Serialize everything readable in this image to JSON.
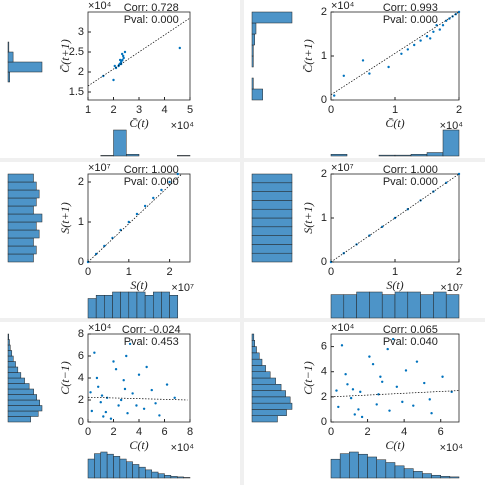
{
  "chart_data": [
    {
      "type": "scatter",
      "color": "#0072bd",
      "hist_color": "#4d94c8",
      "x_label": "C̄(t)",
      "y_label": "C̄(t+1)",
      "x_exponent": "×10⁴",
      "y_exponent": "×10⁴",
      "corr": "Corr: 0.728",
      "pval": "Pval: 0.000",
      "xlim": [
        1,
        5
      ],
      "ylim": [
        1.3,
        3.5
      ],
      "xticks": [
        1,
        2,
        3,
        4,
        5
      ],
      "yticks": [
        1.5,
        2,
        2.5,
        3
      ],
      "x": [
        2.2,
        2.25,
        2.3,
        2.35,
        2.4,
        2.28,
        2.32,
        2.22,
        2.38,
        2.3,
        2.26,
        2.34,
        2.1,
        2.0,
        1.6,
        4.6,
        2.05,
        2.45
      ],
      "y": [
        2.15,
        2.2,
        2.25,
        2.3,
        2.35,
        2.22,
        2.28,
        2.18,
        2.4,
        2.2,
        2.3,
        2.45,
        2.1,
        1.8,
        1.9,
        2.6,
        2.15,
        2.5
      ],
      "fit": {
        "x": [
          1,
          5
        ],
        "y": [
          1.65,
          3.35
        ]
      },
      "y_hist": {
        "bins": [
          1.5,
          1.75,
          2,
          2.25,
          2.5,
          2.75,
          3
        ],
        "counts": [
          0,
          2,
          40,
          6,
          1,
          0
        ]
      },
      "x_hist": {
        "bins": [
          1,
          1.5,
          2,
          2.5,
          3,
          3.5,
          4,
          4.5,
          5
        ],
        "counts": [
          0,
          1,
          45,
          3,
          0,
          0,
          0,
          1
        ]
      }
    },
    {
      "type": "scatter",
      "color": "#0072bd",
      "hist_color": "#4d94c8",
      "x_label": "C̄(t)",
      "y_label": "C̄(t+1)",
      "x_exponent": "×10⁴",
      "y_exponent": "×10⁴",
      "corr": "Corr: 0.993",
      "pval": "Pval: 0.000",
      "xlim": [
        0,
        2
      ],
      "ylim": [
        0,
        2
      ],
      "xticks": [
        0,
        1,
        2
      ],
      "yticks": [
        0,
        1,
        2
      ],
      "x": [
        0.05,
        0.2,
        0.5,
        0.9,
        1.1,
        1.2,
        1.3,
        1.4,
        1.5,
        1.6,
        1.7,
        1.75,
        1.8,
        1.85,
        1.9,
        1.95,
        2,
        1.55,
        1.65,
        0.6
      ],
      "y": [
        0.1,
        0.55,
        0.9,
        0.75,
        1.05,
        1.15,
        1.25,
        1.35,
        1.45,
        1.55,
        1.6,
        1.7,
        1.8,
        1.85,
        1.9,
        1.95,
        2,
        1.4,
        1.7,
        0.6
      ],
      "fit": {
        "x": [
          0,
          2
        ],
        "y": [
          0.12,
          2
        ]
      },
      "y_hist": {
        "bins": [
          0,
          0.25,
          0.5,
          0.75,
          1,
          1.25,
          1.5,
          1.75,
          2
        ],
        "counts": [
          8,
          1,
          0,
          1,
          1,
          2,
          3,
          30
        ]
      },
      "x_hist": {
        "bins": [
          0,
          0.25,
          0.5,
          0.75,
          1,
          1.25,
          1.5,
          1.75,
          2
        ],
        "counts": [
          2,
          0,
          0,
          1,
          1,
          2,
          4,
          30
        ]
      }
    },
    {
      "type": "scatter",
      "color": "#0072bd",
      "hist_color": "#4d94c8",
      "x_label": "S(t)",
      "y_label": "S(t+1)",
      "x_exponent": "×10⁷",
      "y_exponent": "×10⁷",
      "corr": "Corr: 1.000",
      "pval": "Pval: 0.000",
      "xlim": [
        0,
        2.5
      ],
      "ylim": [
        0,
        2.2
      ],
      "xticks": [
        0,
        1,
        2
      ],
      "yticks": [
        0,
        1,
        2
      ],
      "x": [
        0,
        0.2,
        0.4,
        0.6,
        0.8,
        1,
        1.2,
        1.4,
        1.6,
        1.8,
        2,
        2.2
      ],
      "y": [
        0,
        0.2,
        0.4,
        0.6,
        0.8,
        1,
        1.2,
        1.4,
        1.6,
        1.8,
        2,
        2.2
      ],
      "fit": {
        "x": [
          0,
          2.3
        ],
        "y": [
          0,
          2.2
        ]
      },
      "y_hist": {
        "bins": [
          0,
          0.2,
          0.4,
          0.6,
          0.8,
          1,
          1.2,
          1.4,
          1.6,
          1.8,
          2,
          2.2
        ],
        "counts": [
          9,
          10,
          9,
          11,
          10,
          12,
          9,
          10,
          11,
          10,
          9
        ]
      },
      "x_hist": {
        "bins": [
          0,
          0.2,
          0.4,
          0.6,
          0.8,
          1,
          1.2,
          1.4,
          1.6,
          1.8,
          2,
          2.2
        ],
        "counts": [
          6,
          7,
          7,
          8,
          8,
          8,
          8,
          7,
          8,
          8,
          7
        ]
      }
    },
    {
      "type": "scatter",
      "color": "#0072bd",
      "hist_color": "#4d94c8",
      "x_label": "S(t)",
      "y_label": "S(t+1)",
      "x_exponent": "×10⁷",
      "y_exponent": "×10⁷",
      "corr": "Corr: 1.000",
      "pval": "Pval: 0.000",
      "xlim": [
        0,
        2
      ],
      "ylim": [
        0,
        2
      ],
      "xticks": [
        0,
        1,
        2
      ],
      "yticks": [
        0,
        1,
        2
      ],
      "x": [
        0,
        0.2,
        0.4,
        0.6,
        0.8,
        1,
        1.2,
        1.4,
        1.6,
        1.8,
        2
      ],
      "y": [
        0,
        0.2,
        0.4,
        0.6,
        0.8,
        1,
        1.2,
        1.4,
        1.6,
        1.8,
        2
      ],
      "fit": {
        "x": [
          0,
          2
        ],
        "y": [
          0,
          2
        ]
      },
      "y_hist": {
        "bins": [
          0,
          0.2,
          0.4,
          0.6,
          0.8,
          1,
          1.2,
          1.4,
          1.6,
          1.8,
          2
        ],
        "counts": [
          10,
          10,
          10,
          10,
          10,
          10,
          10,
          10,
          10,
          10
        ]
      },
      "x_hist": {
        "bins": [
          0,
          0.2,
          0.4,
          0.6,
          0.8,
          1,
          1.2,
          1.4,
          1.6,
          1.8,
          2
        ],
        "counts": [
          9,
          9,
          10,
          10,
          9,
          10,
          10,
          9,
          10,
          9
        ]
      }
    },
    {
      "type": "scatter",
      "color": "#0072bd",
      "hist_color": "#4d94c8",
      "x_label": "C(t)",
      "y_label": "C(t−1)",
      "x_exponent": "×10⁴",
      "y_exponent": "×10⁴",
      "corr": "Corr: -0.024",
      "pval": "Pval: 0.453",
      "xlim": [
        0,
        8
      ],
      "ylim": [
        0,
        8
      ],
      "xticks": [
        0,
        2,
        4,
        6,
        8
      ],
      "yticks": [
        0,
        2,
        4,
        6,
        8
      ],
      "x": [
        0.3,
        0.8,
        1.2,
        1.5,
        2.0,
        2.4,
        2.8,
        3.1,
        3.5,
        4.0,
        4.4,
        5.0,
        5.6,
        6.2,
        0.5,
        1.0,
        1.8,
        2.2,
        2.6,
        3.3,
        3.8,
        4.6,
        0.2,
        1.4,
        2.9,
        0.7,
        3.0,
        5.3,
        1.1,
        6.8
      ],
      "y": [
        1.0,
        3.2,
        0.5,
        2.2,
        5.5,
        1.5,
        3.8,
        0.8,
        2.6,
        4.3,
        1.2,
        2.9,
        0.6,
        3.4,
        6.3,
        1.8,
        0.3,
        4.8,
        2.0,
        7.1,
        1.5,
        5.0,
        2.7,
        0.9,
        3.0,
        4.0,
        6.0,
        1.7,
        2.4,
        2.2
      ],
      "fit": {
        "x": [
          0,
          7.8
        ],
        "y": [
          2.25,
          2.0
        ]
      },
      "y_hist": {
        "bins": [
          0,
          0.5,
          1,
          1.5,
          2,
          2.5,
          3,
          3.5,
          4,
          4.5,
          5,
          5.5,
          6,
          6.5,
          7,
          7.5,
          8
        ],
        "counts": [
          30,
          40,
          45,
          42,
          38,
          34,
          28,
          22,
          17,
          13,
          10,
          7,
          5,
          3,
          2,
          1
        ]
      },
      "x_hist": {
        "bins": [
          0,
          0.5,
          1,
          1.5,
          2,
          2.5,
          3,
          3.5,
          4,
          4.5,
          5,
          5.5,
          6,
          6.5,
          7,
          7.5,
          8
        ],
        "counts": [
          35,
          45,
          48,
          44,
          40,
          35,
          30,
          25,
          20,
          15,
          11,
          8,
          5,
          3,
          2,
          1
        ]
      }
    },
    {
      "type": "scatter",
      "color": "#0072bd",
      "hist_color": "#4d94c8",
      "x_label": "C(t)",
      "y_label": "C(t−1)",
      "x_exponent": "×10⁴",
      "y_exponent": "×10⁴",
      "corr": "Corr: 0.065",
      "pval": "Pval: 0.040",
      "xlim": [
        0,
        7
      ],
      "ylim": [
        0,
        7
      ],
      "xticks": [
        0,
        2,
        4,
        6
      ],
      "yticks": [
        0,
        2,
        4,
        6
      ],
      "x": [
        0.4,
        0.9,
        1.3,
        1.6,
        2.1,
        2.5,
        2.7,
        3.2,
        3.6,
        4.1,
        4.5,
        5.1,
        5.5,
        6.1,
        0.6,
        1.1,
        1.7,
        2.3,
        2.6,
        3.4,
        3.9,
        4.7,
        0.3,
        1.5,
        2.8,
        0.8,
        3.1,
        5.4,
        1.2,
        6.6
      ],
      "y": [
        1.2,
        3.0,
        0.6,
        2.4,
        5.2,
        1.4,
        3.6,
        0.9,
        2.8,
        4.1,
        1.3,
        3.1,
        0.7,
        3.6,
        6.1,
        1.9,
        0.4,
        4.6,
        2.2,
        6.6,
        1.6,
        4.8,
        2.5,
        1.0,
        3.2,
        3.8,
        5.8,
        1.8,
        2.6,
        2.4
      ],
      "fit": {
        "x": [
          0,
          7
        ],
        "y": [
          2.0,
          2.5
        ]
      },
      "y_hist": {
        "bins": [
          0,
          0.5,
          1,
          1.5,
          2,
          2.5,
          3,
          3.5,
          4,
          4.5,
          5,
          5.5,
          6,
          6.5,
          7
        ],
        "counts": [
          28,
          38,
          44,
          42,
          37,
          32,
          26,
          20,
          15,
          11,
          8,
          5,
          3,
          2
        ]
      },
      "x_hist": {
        "bins": [
          0,
          0.5,
          1,
          1.5,
          2,
          2.5,
          3,
          3.5,
          4,
          4.5,
          5,
          5.5,
          6,
          6.5,
          7
        ],
        "counts": [
          34,
          44,
          47,
          43,
          38,
          33,
          28,
          22,
          17,
          12,
          8,
          5,
          3,
          2
        ]
      }
    }
  ]
}
